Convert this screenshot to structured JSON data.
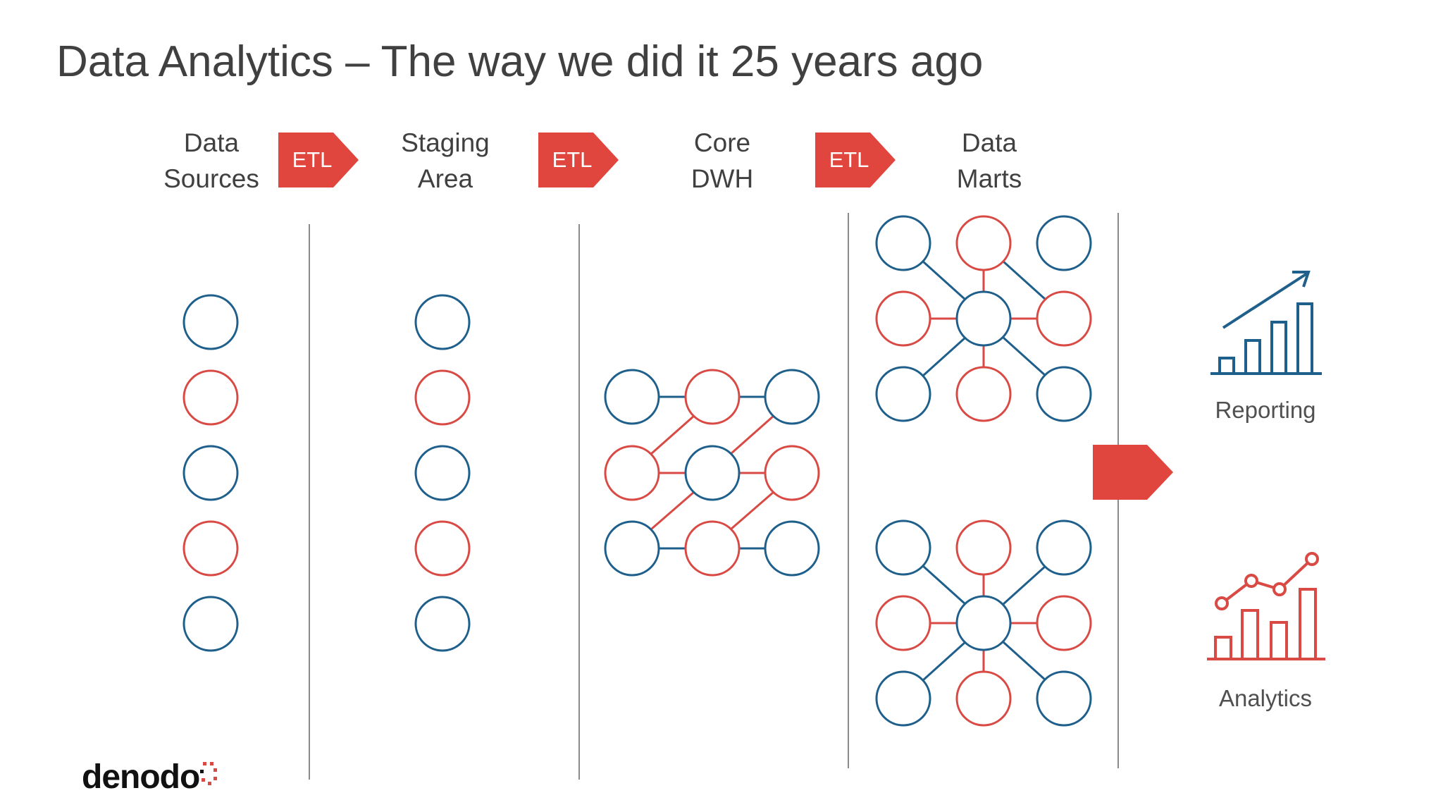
{
  "title": "Data Analytics – The way we did it 25 years ago",
  "columns": [
    {
      "line1": "Data",
      "line2": "Sources"
    },
    {
      "line1": "Staging",
      "line2": "Area"
    },
    {
      "line1": "Core",
      "line2": "DWH"
    },
    {
      "line1": "Data",
      "line2": "Marts"
    }
  ],
  "etl_label": "ETL",
  "apps": {
    "reporting": "Reporting",
    "analytics": "Analytics"
  },
  "logo": "denodo",
  "colors": {
    "blue": "#1f5f8b",
    "red": "#d94a45",
    "arrow": "#e0453e",
    "text": "#404040"
  }
}
